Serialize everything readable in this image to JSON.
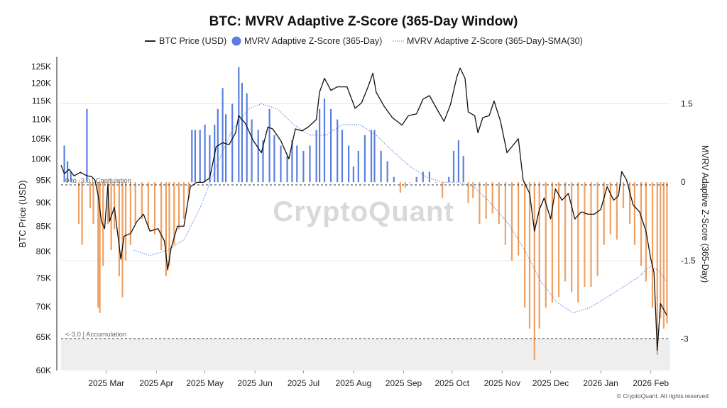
{
  "chart_data": {
    "type": "bar+line",
    "title": "BTC: MVRV Adaptive Z-Score (365-Day Window)",
    "legend": [
      {
        "label": "BTC Price (USD)",
        "kind": "line",
        "color": "#111111"
      },
      {
        "label": "MVRV Adaptive Z-Score (365-Day)",
        "kind": "bar",
        "color": "#5b7fe0"
      },
      {
        "label": "MVRV Adaptive Z-Score (365-Day)-SMA(30)",
        "kind": "dotted",
        "color": "#5b7fe0"
      }
    ],
    "colors": {
      "positive": "#5b7fe0",
      "negative": "#f0a060",
      "price": "#111111",
      "sma": "#5b7fe0",
      "zone": "#eeeeef"
    },
    "y_left": {
      "label": "BTC Price (USD)",
      "range": [
        60000,
        128000
      ],
      "ticks": [
        {
          "v": 60000,
          "label": "60K"
        },
        {
          "v": 65000,
          "label": "65K"
        },
        {
          "v": 70000,
          "label": "70K"
        },
        {
          "v": 75000,
          "label": "75K"
        },
        {
          "v": 80000,
          "label": "80K"
        },
        {
          "v": 85000,
          "label": "85K"
        },
        {
          "v": 90000,
          "label": "90K"
        },
        {
          "v": 95000,
          "label": "95K"
        },
        {
          "v": 100000,
          "label": "100K"
        },
        {
          "v": 105000,
          "label": "105K"
        },
        {
          "v": 110000,
          "label": "110K"
        },
        {
          "v": 115000,
          "label": "115K"
        },
        {
          "v": 120000,
          "label": "120K"
        },
        {
          "v": 125000,
          "label": "125K"
        }
      ]
    },
    "y_right": {
      "label": "MVRV Adaptive Z-Score (365-Day)",
      "range": [
        -3.6,
        2.4
      ],
      "ticks": [
        {
          "v": 1.5,
          "label": "1.5"
        },
        {
          "v": 0,
          "label": "0"
        },
        {
          "v": -1.5,
          "label": "-1.5"
        },
        {
          "v": -3,
          "label": "-3"
        }
      ]
    },
    "x_axis": {
      "start": "2025-02-01",
      "end": "2026-02-13",
      "ticks": [
        {
          "date": "2025-03-01",
          "label": "2025 Mar"
        },
        {
          "date": "2025-04-01",
          "label": "2025 Apr"
        },
        {
          "date": "2025-05-01",
          "label": "2025 May"
        },
        {
          "date": "2025-06-01",
          "label": "2025 Jun"
        },
        {
          "date": "2025-07-01",
          "label": "2025 Jul"
        },
        {
          "date": "2025-08-01",
          "label": "2025 Aug"
        },
        {
          "date": "2025-09-01",
          "label": "2025 Sep"
        },
        {
          "date": "2025-10-01",
          "label": "2025 Oct"
        },
        {
          "date": "2025-11-01",
          "label": "2025 Nov"
        },
        {
          "date": "2025-12-01",
          "label": "2025 Dec"
        },
        {
          "date": "2026-01-01",
          "label": "2026 Jan"
        },
        {
          "date": "2026-02-01",
          "label": "2026 Feb"
        }
      ]
    },
    "reference_lines": [
      {
        "value": 0,
        "label": "0 to -3.0 | Capitulation"
      },
      {
        "value": -3,
        "label": "<-3.0 | Accumulation"
      }
    ],
    "zscore_series": [
      [
        "2025-02-03",
        0.7
      ],
      [
        "2025-02-05",
        0.4
      ],
      [
        "2025-02-07",
        0.2
      ],
      [
        "2025-02-10",
        0.0
      ],
      [
        "2025-02-12",
        -0.8
      ],
      [
        "2025-02-14",
        -1.2
      ],
      [
        "2025-02-17",
        1.4
      ],
      [
        "2025-02-19",
        -0.5
      ],
      [
        "2025-02-21",
        -0.8
      ],
      [
        "2025-02-24",
        -2.4
      ],
      [
        "2025-02-25",
        -2.5
      ],
      [
        "2025-02-27",
        -1.6
      ],
      [
        "2025-03-02",
        -0.8
      ],
      [
        "2025-03-04",
        -1.3
      ],
      [
        "2025-03-06",
        -0.9
      ],
      [
        "2025-03-09",
        -1.8
      ],
      [
        "2025-03-11",
        -2.2
      ],
      [
        "2025-03-13",
        -1.5
      ],
      [
        "2025-03-16",
        -1.2
      ],
      [
        "2025-03-19",
        -0.8
      ],
      [
        "2025-03-23",
        -0.7
      ],
      [
        "2025-03-27",
        -0.9
      ],
      [
        "2025-03-31",
        -1.0
      ],
      [
        "2025-04-04",
        -1.3
      ],
      [
        "2025-04-07",
        -1.8
      ],
      [
        "2025-04-09",
        -1.6
      ],
      [
        "2025-04-12",
        -1.2
      ],
      [
        "2025-04-15",
        -0.9
      ],
      [
        "2025-04-18",
        -0.7
      ],
      [
        "2025-04-21",
        -0.3
      ],
      [
        "2025-04-23",
        1.0
      ],
      [
        "2025-04-25",
        1.0
      ],
      [
        "2025-04-28",
        1.0
      ],
      [
        "2025-05-01",
        1.1
      ],
      [
        "2025-05-04",
        0.9
      ],
      [
        "2025-05-07",
        1.1
      ],
      [
        "2025-05-09",
        1.4
      ],
      [
        "2025-05-12",
        1.8
      ],
      [
        "2025-05-14",
        1.3
      ],
      [
        "2025-05-18",
        1.5
      ],
      [
        "2025-05-22",
        2.2
      ],
      [
        "2025-05-24",
        1.9
      ],
      [
        "2025-05-27",
        1.7
      ],
      [
        "2025-05-30",
        1.2
      ],
      [
        "2025-06-03",
        1.0
      ],
      [
        "2025-06-06",
        0.8
      ],
      [
        "2025-06-10",
        1.4
      ],
      [
        "2025-06-13",
        0.9
      ],
      [
        "2025-06-17",
        0.7
      ],
      [
        "2025-06-21",
        0.5
      ],
      [
        "2025-06-24",
        0.8
      ],
      [
        "2025-06-27",
        0.7
      ],
      [
        "2025-07-01",
        0.6
      ],
      [
        "2025-07-05",
        0.7
      ],
      [
        "2025-07-09",
        1.0
      ],
      [
        "2025-07-11",
        1.4
      ],
      [
        "2025-07-14",
        1.6
      ],
      [
        "2025-07-18",
        1.4
      ],
      [
        "2025-07-22",
        1.2
      ],
      [
        "2025-07-25",
        1.0
      ],
      [
        "2025-07-29",
        0.7
      ],
      [
        "2025-08-01",
        0.3
      ],
      [
        "2025-08-04",
        0.6
      ],
      [
        "2025-08-08",
        0.9
      ],
      [
        "2025-08-12",
        1.0
      ],
      [
        "2025-08-14",
        1.0
      ],
      [
        "2025-08-18",
        0.6
      ],
      [
        "2025-08-22",
        0.4
      ],
      [
        "2025-08-26",
        0.1
      ],
      [
        "2025-08-30",
        -0.2
      ],
      [
        "2025-09-02",
        -0.1
      ],
      [
        "2025-09-05",
        0.0
      ],
      [
        "2025-09-09",
        0.1
      ],
      [
        "2025-09-13",
        0.2
      ],
      [
        "2025-09-17",
        0.2
      ],
      [
        "2025-09-21",
        0.0
      ],
      [
        "2025-09-25",
        -0.3
      ],
      [
        "2025-09-29",
        0.1
      ],
      [
        "2025-10-02",
        0.6
      ],
      [
        "2025-10-05",
        0.8
      ],
      [
        "2025-10-08",
        0.5
      ],
      [
        "2025-10-11",
        -0.4
      ],
      [
        "2025-10-14",
        -0.3
      ],
      [
        "2025-10-18",
        -0.8
      ],
      [
        "2025-10-22",
        -0.7
      ],
      [
        "2025-10-26",
        -0.6
      ],
      [
        "2025-10-30",
        -0.8
      ],
      [
        "2025-11-03",
        -1.2
      ],
      [
        "2025-11-07",
        -1.5
      ],
      [
        "2025-11-11",
        -1.4
      ],
      [
        "2025-11-15",
        -2.4
      ],
      [
        "2025-11-18",
        -2.8
      ],
      [
        "2025-11-21",
        -3.4
      ],
      [
        "2025-11-24",
        -2.8
      ],
      [
        "2025-11-28",
        -2.4
      ],
      [
        "2025-12-02",
        -2.3
      ],
      [
        "2025-12-06",
        -2.2
      ],
      [
        "2025-12-10",
        -1.9
      ],
      [
        "2025-12-14",
        -2.1
      ],
      [
        "2025-12-18",
        -2.3
      ],
      [
        "2025-12-22",
        -2.0
      ],
      [
        "2025-12-26",
        -2.0
      ],
      [
        "2025-12-30",
        -1.8
      ],
      [
        "2026-01-03",
        -1.2
      ],
      [
        "2026-01-07",
        -1.0
      ],
      [
        "2026-01-11",
        -1.1
      ],
      [
        "2026-01-15",
        -0.5
      ],
      [
        "2026-01-19",
        -0.8
      ],
      [
        "2026-01-22",
        -1.2
      ],
      [
        "2026-01-26",
        -1.6
      ],
      [
        "2026-01-29",
        -1.9
      ],
      [
        "2026-02-02",
        -2.4
      ],
      [
        "2026-02-05",
        -3.3
      ],
      [
        "2026-02-07",
        -2.6
      ],
      [
        "2026-02-09",
        -2.8
      ],
      [
        "2026-02-11",
        -2.7
      ]
    ],
    "price_series": [
      [
        "2025-02-01",
        98500
      ],
      [
        "2025-02-03",
        96500
      ],
      [
        "2025-02-06",
        97500
      ],
      [
        "2025-02-09",
        96000
      ],
      [
        "2025-02-13",
        96800
      ],
      [
        "2025-02-17",
        96000
      ],
      [
        "2025-02-20",
        95800
      ],
      [
        "2025-02-22",
        95000
      ],
      [
        "2025-02-24",
        91500
      ],
      [
        "2025-02-26",
        86000
      ],
      [
        "2025-02-28",
        84500
      ],
      [
        "2025-03-02",
        94000
      ],
      [
        "2025-03-03",
        86000
      ],
      [
        "2025-03-06",
        89000
      ],
      [
        "2025-03-10",
        78500
      ],
      [
        "2025-03-12",
        83000
      ],
      [
        "2025-03-16",
        83500
      ],
      [
        "2025-03-20",
        86000
      ],
      [
        "2025-03-24",
        87500
      ],
      [
        "2025-03-28",
        84000
      ],
      [
        "2025-04-02",
        84500
      ],
      [
        "2025-04-06",
        82000
      ],
      [
        "2025-04-08",
        76500
      ],
      [
        "2025-04-10",
        80500
      ],
      [
        "2025-04-14",
        85000
      ],
      [
        "2025-04-18",
        85000
      ],
      [
        "2025-04-22",
        93500
      ],
      [
        "2025-04-26",
        94500
      ],
      [
        "2025-04-30",
        94500
      ],
      [
        "2025-05-04",
        95500
      ],
      [
        "2025-05-08",
        103000
      ],
      [
        "2025-05-12",
        104000
      ],
      [
        "2025-05-16",
        103500
      ],
      [
        "2025-05-20",
        106500
      ],
      [
        "2025-05-22",
        111000
      ],
      [
        "2025-05-26",
        109000
      ],
      [
        "2025-05-31",
        104500
      ],
      [
        "2025-06-05",
        101500
      ],
      [
        "2025-06-09",
        108000
      ],
      [
        "2025-06-12",
        107500
      ],
      [
        "2025-06-17",
        104500
      ],
      [
        "2025-06-22",
        100000
      ],
      [
        "2025-06-26",
        107500
      ],
      [
        "2025-06-30",
        107000
      ],
      [
        "2025-07-04",
        108000
      ],
      [
        "2025-07-09",
        110000
      ],
      [
        "2025-07-11",
        117500
      ],
      [
        "2025-07-14",
        121500
      ],
      [
        "2025-07-18",
        118000
      ],
      [
        "2025-07-22",
        119000
      ],
      [
        "2025-07-28",
        119000
      ],
      [
        "2025-08-02",
        113000
      ],
      [
        "2025-08-06",
        114500
      ],
      [
        "2025-08-10",
        119000
      ],
      [
        "2025-08-13",
        123000
      ],
      [
        "2025-08-15",
        117500
      ],
      [
        "2025-08-20",
        113500
      ],
      [
        "2025-08-25",
        110500
      ],
      [
        "2025-08-31",
        108500
      ],
      [
        "2025-09-04",
        111000
      ],
      [
        "2025-09-09",
        111500
      ],
      [
        "2025-09-13",
        115500
      ],
      [
        "2025-09-17",
        116500
      ],
      [
        "2025-09-22",
        112500
      ],
      [
        "2025-09-26",
        109500
      ],
      [
        "2025-09-30",
        114000
      ],
      [
        "2025-10-04",
        122000
      ],
      [
        "2025-10-06",
        124500
      ],
      [
        "2025-10-09",
        121500
      ],
      [
        "2025-10-11",
        112000
      ],
      [
        "2025-10-15",
        111000
      ],
      [
        "2025-10-17",
        106500
      ],
      [
        "2025-10-20",
        110500
      ],
      [
        "2025-10-24",
        111000
      ],
      [
        "2025-10-27",
        115000
      ],
      [
        "2025-10-31",
        109500
      ],
      [
        "2025-11-04",
        101500
      ],
      [
        "2025-11-07",
        103000
      ],
      [
        "2025-11-11",
        105000
      ],
      [
        "2025-11-14",
        95000
      ],
      [
        "2025-11-18",
        92000
      ],
      [
        "2025-11-21",
        84000
      ],
      [
        "2025-11-24",
        88500
      ],
      [
        "2025-11-27",
        91000
      ],
      [
        "2025-12-01",
        86500
      ],
      [
        "2025-12-04",
        93000
      ],
      [
        "2025-12-08",
        90500
      ],
      [
        "2025-12-12",
        92000
      ],
      [
        "2025-12-16",
        86500
      ],
      [
        "2025-12-20",
        88000
      ],
      [
        "2025-12-24",
        87500
      ],
      [
        "2025-12-28",
        87500
      ],
      [
        "2026-01-01",
        88500
      ],
      [
        "2026-01-05",
        93500
      ],
      [
        "2026-01-09",
        90500
      ],
      [
        "2026-01-12",
        91500
      ],
      [
        "2026-01-14",
        97000
      ],
      [
        "2026-01-17",
        95000
      ],
      [
        "2026-01-21",
        89500
      ],
      [
        "2026-01-25",
        88000
      ],
      [
        "2026-01-29",
        84000
      ],
      [
        "2026-02-01",
        78500
      ],
      [
        "2026-02-03",
        76000
      ],
      [
        "2026-02-05",
        63000
      ],
      [
        "2026-02-07",
        70500
      ],
      [
        "2026-02-09",
        69500
      ],
      [
        "2026-02-11",
        68500
      ]
    ],
    "sma_series": [
      [
        "2025-03-18",
        -1.3
      ],
      [
        "2025-03-28",
        -1.4
      ],
      [
        "2025-04-08",
        -1.3
      ],
      [
        "2025-04-18",
        -1.1
      ],
      [
        "2025-04-28",
        -0.5
      ],
      [
        "2025-05-08",
        0.3
      ],
      [
        "2025-05-18",
        1.0
      ],
      [
        "2025-05-28",
        1.4
      ],
      [
        "2025-06-05",
        1.5
      ],
      [
        "2025-06-15",
        1.4
      ],
      [
        "2025-06-25",
        1.1
      ],
      [
        "2025-07-05",
        0.9
      ],
      [
        "2025-07-15",
        0.9
      ],
      [
        "2025-07-25",
        1.1
      ],
      [
        "2025-08-05",
        1.1
      ],
      [
        "2025-08-15",
        0.9
      ],
      [
        "2025-08-25",
        0.6
      ],
      [
        "2025-09-05",
        0.3
      ],
      [
        "2025-09-15",
        0.1
      ],
      [
        "2025-09-25",
        0.0
      ],
      [
        "2025-10-05",
        0.0
      ],
      [
        "2025-10-15",
        -0.1
      ],
      [
        "2025-10-25",
        -0.4
      ],
      [
        "2025-11-05",
        -0.8
      ],
      [
        "2025-11-15",
        -1.3
      ],
      [
        "2025-11-25",
        -1.9
      ],
      [
        "2025-12-05",
        -2.3
      ],
      [
        "2025-12-15",
        -2.5
      ],
      [
        "2025-12-25",
        -2.4
      ],
      [
        "2026-01-05",
        -2.2
      ],
      [
        "2026-01-15",
        -2.0
      ],
      [
        "2026-01-25",
        -1.8
      ],
      [
        "2026-02-01",
        -1.6
      ],
      [
        "2026-02-06",
        -1.7
      ],
      [
        "2026-02-11",
        -1.9
      ]
    ]
  },
  "watermark": "CryptoQuant",
  "copyright": "© CryptoQuant. All rights reserved"
}
